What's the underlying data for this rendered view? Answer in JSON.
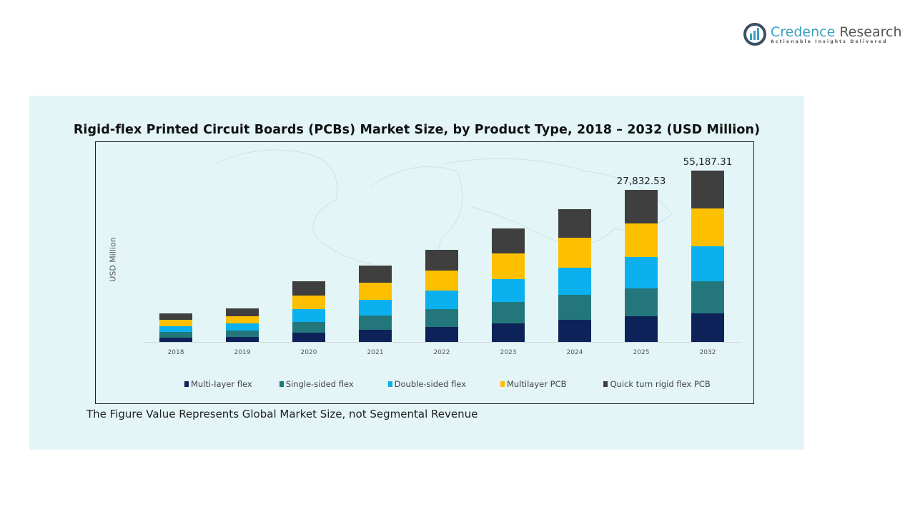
{
  "logo": {
    "name_part1": "Credence",
    "name_part2": "Research",
    "tagline": "Actionable Insights Delivered"
  },
  "chart_data": {
    "type": "bar",
    "stacked": true,
    "title": "Rigid-flex Printed Circuit Boards (PCBs) Market Size, by Product Type, 2018 – 2032 (USD Million)",
    "ylabel": "USD Million",
    "xlabel": "",
    "categories": [
      "2018",
      "2019",
      "2020",
      "2021",
      "2022",
      "2023",
      "2024",
      "2025",
      "2032"
    ],
    "series": [
      {
        "name": "Multi-layer flex",
        "color": "#0d2259",
        "values": [
          784,
          915,
          1699,
          2221,
          2744,
          3397,
          4051,
          4704,
          9196
        ]
      },
      {
        "name": "Single-sided flex",
        "color": "#23777a",
        "values": [
          1045,
          1176,
          1960,
          2613,
          3267,
          3920,
          4573,
          5096,
          10346
        ]
      },
      {
        "name": "Double-sided flex",
        "color": "#0bb0ef",
        "values": [
          1045,
          1307,
          2352,
          2875,
          3397,
          4181,
          4965,
          5750,
          11265
        ]
      },
      {
        "name": "Multilayer PCB",
        "color": "#fcc000",
        "values": [
          1176,
          1307,
          2483,
          3136,
          3659,
          4704,
          5488,
          6141,
          12185
        ]
      },
      {
        "name": "Quick turn rigid flex PCB",
        "color": "#3f3f3f",
        "values": [
          1176,
          1437,
          2613,
          3136,
          3789,
          4574,
          5227,
          6141,
          12195
        ]
      }
    ],
    "data_labels": {
      "2025": "27,832.53",
      "2032": "55,187.31"
    },
    "grid": false,
    "legend_position": "bottom"
  },
  "note": "The Figure Value Represents Global Market Size, not Segmental Revenue",
  "colors": {
    "panel_background": "#e3f5f6"
  }
}
